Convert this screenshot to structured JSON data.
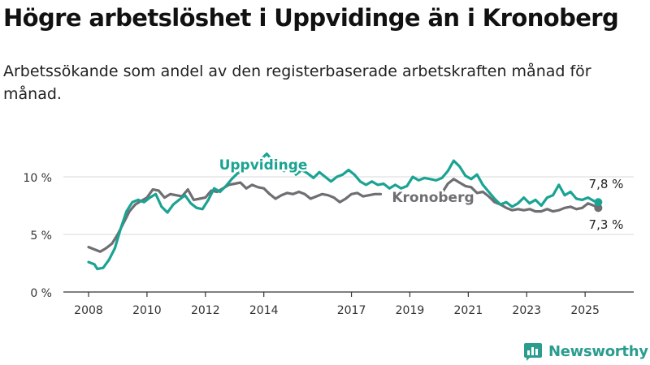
{
  "title": "Högre arbetslöshet i Uppvidinge än i Kronoberg",
  "subtitle": "Arbetssökande som andel av den registerbaserade arbetskraften månad för månad.",
  "brand": {
    "name": "Newsworthy",
    "icon": "newsworthy-logo-icon"
  },
  "colors": {
    "uppvidinge": "#1aa393",
    "kronoberg": "#6e6e73",
    "grid": "#d9d9d9",
    "axis": "#333333"
  },
  "chart_data": {
    "type": "line",
    "x_unit": "year",
    "xlim": [
      2007.7,
      2026.4
    ],
    "ylim": [
      0,
      12.5
    ],
    "grid": true,
    "y_ticks": [
      {
        "value": 0,
        "label": "0 %"
      },
      {
        "value": 5,
        "label": "5 %"
      },
      {
        "value": 10,
        "label": "10 %"
      }
    ],
    "x_ticks": [
      {
        "value": 2008,
        "label": "2008"
      },
      {
        "value": 2010,
        "label": "2010"
      },
      {
        "value": 2012,
        "label": "2012"
      },
      {
        "value": 2014,
        "label": "2014"
      },
      {
        "value": 2017,
        "label": "2017"
      },
      {
        "value": 2019,
        "label": "2019"
      },
      {
        "value": 2021,
        "label": "2021"
      },
      {
        "value": 2023,
        "label": "2023"
      },
      {
        "value": 2025,
        "label": "2025"
      }
    ],
    "series": [
      {
        "name": "Kronoberg",
        "color": "#6e6e73",
        "end_label": "7,3 %",
        "points": [
          [
            2008.0,
            3.9
          ],
          [
            2008.2,
            3.7
          ],
          [
            2008.4,
            3.5
          ],
          [
            2008.6,
            3.8
          ],
          [
            2008.8,
            4.2
          ],
          [
            2009.0,
            5.0
          ],
          [
            2009.2,
            6.0
          ],
          [
            2009.4,
            7.0
          ],
          [
            2009.6,
            7.6
          ],
          [
            2009.8,
            7.9
          ],
          [
            2010.0,
            8.2
          ],
          [
            2010.2,
            8.9
          ],
          [
            2010.4,
            8.8
          ],
          [
            2010.6,
            8.2
          ],
          [
            2010.8,
            8.5
          ],
          [
            2011.0,
            8.4
          ],
          [
            2011.2,
            8.3
          ],
          [
            2011.4,
            8.9
          ],
          [
            2011.6,
            8.0
          ],
          [
            2011.8,
            8.1
          ],
          [
            2012.0,
            8.2
          ],
          [
            2012.2,
            8.8
          ],
          [
            2012.4,
            8.7
          ],
          [
            2012.6,
            9.0
          ],
          [
            2012.8,
            9.3
          ],
          [
            2013.0,
            9.4
          ],
          [
            2013.2,
            9.5
          ],
          [
            2013.4,
            9.0
          ],
          [
            2013.6,
            9.3
          ],
          [
            2013.8,
            9.1
          ],
          [
            2014.0,
            9.0
          ],
          [
            2014.2,
            8.5
          ],
          [
            2014.4,
            8.1
          ],
          [
            2014.6,
            8.4
          ],
          [
            2014.8,
            8.6
          ],
          [
            2015.0,
            8.5
          ],
          [
            2015.2,
            8.7
          ],
          [
            2015.4,
            8.5
          ],
          [
            2015.6,
            8.1
          ],
          [
            2015.8,
            8.3
          ],
          [
            2016.0,
            8.5
          ],
          [
            2016.2,
            8.4
          ],
          [
            2016.4,
            8.2
          ],
          [
            2016.6,
            7.8
          ],
          [
            2016.8,
            8.1
          ],
          [
            2017.0,
            8.5
          ],
          [
            2017.2,
            8.6
          ],
          [
            2017.4,
            8.3
          ],
          [
            2017.6,
            8.4
          ],
          [
            2017.8,
            8.5
          ],
          [
            2018.0,
            8.5
          ]
        ],
        "points2": [
          [
            2020.1,
            8.6
          ],
          [
            2020.3,
            9.4
          ],
          [
            2020.5,
            9.8
          ],
          [
            2020.7,
            9.5
          ],
          [
            2020.9,
            9.2
          ],
          [
            2021.1,
            9.1
          ],
          [
            2021.3,
            8.6
          ],
          [
            2021.5,
            8.7
          ],
          [
            2021.7,
            8.3
          ],
          [
            2021.9,
            7.8
          ],
          [
            2022.1,
            7.6
          ],
          [
            2022.3,
            7.3
          ],
          [
            2022.5,
            7.1
          ],
          [
            2022.7,
            7.2
          ],
          [
            2022.9,
            7.1
          ],
          [
            2023.1,
            7.2
          ],
          [
            2023.3,
            7.0
          ],
          [
            2023.5,
            7.0
          ],
          [
            2023.7,
            7.2
          ],
          [
            2023.9,
            7.0
          ],
          [
            2024.1,
            7.1
          ],
          [
            2024.3,
            7.3
          ],
          [
            2024.5,
            7.4
          ],
          [
            2024.7,
            7.2
          ],
          [
            2024.9,
            7.3
          ],
          [
            2025.1,
            7.7
          ],
          [
            2025.3,
            7.5
          ],
          [
            2025.45,
            7.3
          ]
        ]
      },
      {
        "name": "Uppvidinge",
        "color": "#1aa393",
        "end_label": "7,8 %",
        "points": [
          [
            2008.0,
            2.6
          ],
          [
            2008.2,
            2.4
          ],
          [
            2008.3,
            2.0
          ],
          [
            2008.5,
            2.1
          ],
          [
            2008.7,
            2.8
          ],
          [
            2008.9,
            3.8
          ],
          [
            2009.1,
            5.5
          ],
          [
            2009.3,
            7.0
          ],
          [
            2009.5,
            7.8
          ],
          [
            2009.7,
            8.0
          ],
          [
            2009.9,
            7.8
          ],
          [
            2010.1,
            8.2
          ],
          [
            2010.3,
            8.5
          ],
          [
            2010.5,
            7.4
          ],
          [
            2010.7,
            6.9
          ],
          [
            2010.9,
            7.6
          ],
          [
            2011.1,
            8.0
          ],
          [
            2011.3,
            8.4
          ],
          [
            2011.5,
            7.7
          ],
          [
            2011.7,
            7.3
          ],
          [
            2011.9,
            7.2
          ],
          [
            2012.1,
            8.0
          ],
          [
            2012.3,
            9.0
          ],
          [
            2012.5,
            8.7
          ],
          [
            2012.7,
            9.2
          ],
          [
            2012.9,
            9.8
          ],
          [
            2013.1,
            10.3
          ],
          [
            2013.3,
            10.5
          ],
          [
            2013.5,
            11.2
          ],
          [
            2013.7,
            10.8
          ],
          [
            2013.9,
            11.5
          ],
          [
            2014.1,
            12.0
          ],
          [
            2014.3,
            11.4
          ],
          [
            2014.5,
            10.9
          ],
          [
            2014.7,
            10.5
          ],
          [
            2014.9,
            10.9
          ],
          [
            2015.1,
            10.2
          ],
          [
            2015.3,
            10.6
          ],
          [
            2015.5,
            10.3
          ],
          [
            2015.7,
            9.9
          ],
          [
            2015.9,
            10.4
          ],
          [
            2016.1,
            10.0
          ],
          [
            2016.3,
            9.6
          ],
          [
            2016.5,
            10.0
          ],
          [
            2016.7,
            10.2
          ],
          [
            2016.9,
            10.6
          ],
          [
            2017.1,
            10.2
          ],
          [
            2017.3,
            9.6
          ],
          [
            2017.5,
            9.3
          ],
          [
            2017.7,
            9.6
          ],
          [
            2017.9,
            9.3
          ],
          [
            2018.1,
            9.4
          ],
          [
            2018.3,
            9.0
          ],
          [
            2018.5,
            9.3
          ],
          [
            2018.7,
            9.0
          ],
          [
            2018.9,
            9.2
          ],
          [
            2019.1,
            10.0
          ],
          [
            2019.3,
            9.7
          ],
          [
            2019.5,
            9.9
          ],
          [
            2019.7,
            9.8
          ],
          [
            2019.9,
            9.7
          ],
          [
            2020.1,
            9.9
          ],
          [
            2020.3,
            10.5
          ],
          [
            2020.5,
            11.4
          ],
          [
            2020.7,
            10.9
          ],
          [
            2020.9,
            10.1
          ],
          [
            2021.1,
            9.8
          ],
          [
            2021.3,
            10.2
          ],
          [
            2021.5,
            9.3
          ],
          [
            2021.7,
            8.7
          ],
          [
            2021.9,
            8.1
          ],
          [
            2022.1,
            7.6
          ],
          [
            2022.3,
            7.8
          ],
          [
            2022.5,
            7.4
          ],
          [
            2022.7,
            7.7
          ],
          [
            2022.9,
            8.2
          ],
          [
            2023.1,
            7.7
          ],
          [
            2023.3,
            8.0
          ],
          [
            2023.5,
            7.5
          ],
          [
            2023.7,
            8.2
          ],
          [
            2023.9,
            8.4
          ],
          [
            2024.1,
            9.3
          ],
          [
            2024.3,
            8.4
          ],
          [
            2024.5,
            8.7
          ],
          [
            2024.7,
            8.1
          ],
          [
            2024.9,
            8.0
          ],
          [
            2025.1,
            8.2
          ],
          [
            2025.3,
            7.9
          ],
          [
            2025.45,
            7.8
          ]
        ]
      }
    ],
    "annotations": [
      {
        "text": "Uppvidinge",
        "series": "Uppvidinge"
      },
      {
        "text": "Kronoberg",
        "series": "Kronoberg"
      }
    ]
  }
}
